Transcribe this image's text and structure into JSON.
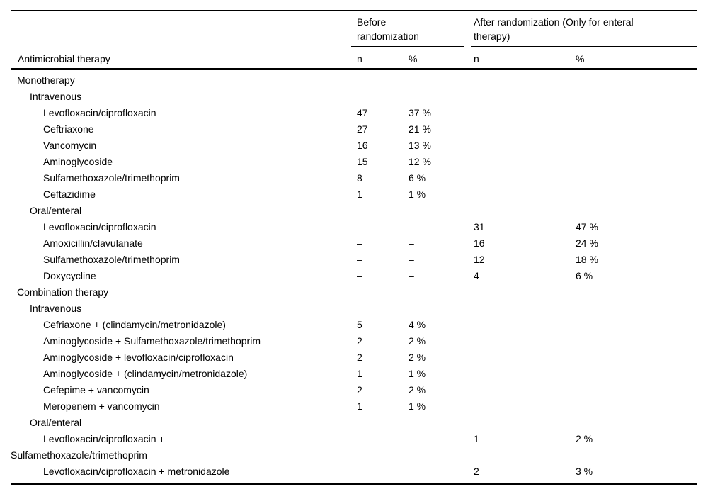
{
  "page": {
    "background": "#ffffff",
    "text_color": "#000000",
    "rule_color": "#000000"
  },
  "table": {
    "header": {
      "label_column": "Antimicrobial therapy",
      "group_before": "Before randomization",
      "group_after": "After randomization (Only for enteral therapy)",
      "subcols": {
        "n": "n",
        "pct": "%"
      }
    },
    "rows": [
      {
        "label": "Monotherapy",
        "level": 0,
        "before_n": "",
        "before_pct": "",
        "after_n": "",
        "after_pct": ""
      },
      {
        "label": "Intravenous",
        "level": 1,
        "before_n": "",
        "before_pct": "",
        "after_n": "",
        "after_pct": ""
      },
      {
        "label": "Levofloxacin/ciprofloxacin",
        "level": 2,
        "before_n": "47",
        "before_pct": "37 %",
        "after_n": "",
        "after_pct": ""
      },
      {
        "label": "Ceftriaxone",
        "level": 2,
        "before_n": "27",
        "before_pct": "21 %",
        "after_n": "",
        "after_pct": ""
      },
      {
        "label": "Vancomycin",
        "level": 2,
        "before_n": "16",
        "before_pct": "13 %",
        "after_n": "",
        "after_pct": ""
      },
      {
        "label": "Aminoglycoside",
        "level": 2,
        "before_n": "15",
        "before_pct": "12 %",
        "after_n": "",
        "after_pct": ""
      },
      {
        "label": "Sulfamethoxazole/trimethoprim",
        "level": 2,
        "before_n": "8",
        "before_pct": "6 %",
        "after_n": "",
        "after_pct": ""
      },
      {
        "label": "Ceftazidime",
        "level": 2,
        "before_n": "1",
        "before_pct": "1 %",
        "after_n": "",
        "after_pct": ""
      },
      {
        "label": "Oral/enteral",
        "level": 1,
        "before_n": "",
        "before_pct": "",
        "after_n": "",
        "after_pct": ""
      },
      {
        "label": "Levofloxacin/ciprofloxacin",
        "level": 2,
        "before_n": "–",
        "before_pct": "–",
        "after_n": "31",
        "after_pct": "47 %"
      },
      {
        "label": "Amoxicillin/clavulanate",
        "level": 2,
        "before_n": "–",
        "before_pct": "–",
        "after_n": "16",
        "after_pct": "24 %"
      },
      {
        "label": "Sulfamethoxazole/trimethoprim",
        "level": 2,
        "before_n": "–",
        "before_pct": "–",
        "after_n": "12",
        "after_pct": "18 %"
      },
      {
        "label": "Doxycycline",
        "level": 2,
        "before_n": "–",
        "before_pct": "–",
        "after_n": "4",
        "after_pct": "6 %"
      },
      {
        "label": "Combination therapy",
        "level": 0,
        "before_n": "",
        "before_pct": "",
        "after_n": "",
        "after_pct": ""
      },
      {
        "label": "Intravenous",
        "level": 1,
        "before_n": "",
        "before_pct": "",
        "after_n": "",
        "after_pct": ""
      },
      {
        "label": "Cefriaxone + (clindamycin/metronidazole)",
        "level": 2,
        "before_n": "5",
        "before_pct": "4 %",
        "after_n": "",
        "after_pct": ""
      },
      {
        "label": "Aminoglycoside + Sulfamethoxazole/trimethoprim",
        "level": 2,
        "before_n": "2",
        "before_pct": "2 %",
        "after_n": "",
        "after_pct": ""
      },
      {
        "label": "Aminoglycoside + levofloxacin/ciprofloxacin",
        "level": 2,
        "before_n": "2",
        "before_pct": "2 %",
        "after_n": "",
        "after_pct": ""
      },
      {
        "label": "Aminoglycoside + (clindamycin/metronidazole)",
        "level": 2,
        "before_n": "1",
        "before_pct": "1 %",
        "after_n": "",
        "after_pct": ""
      },
      {
        "label": "Cefepime + vancomycin",
        "level": 2,
        "before_n": "2",
        "before_pct": "2 %",
        "after_n": "",
        "after_pct": ""
      },
      {
        "label": "Meropenem + vancomycin",
        "level": 2,
        "before_n": "1",
        "before_pct": "1 %",
        "after_n": "",
        "after_pct": ""
      },
      {
        "label": "Oral/enteral",
        "level": 1,
        "before_n": "",
        "before_pct": "",
        "after_n": "",
        "after_pct": ""
      },
      {
        "label": "Levofloxacin/ciprofloxacin + Sulfamethoxazole/trimethoprim",
        "level": 2,
        "hang": true,
        "before_n": "",
        "before_pct": "",
        "after_n": "1",
        "after_pct": "2 %"
      },
      {
        "label": "Levofloxacin/ciprofloxacin + metronidazole",
        "level": 2,
        "before_n": "",
        "before_pct": "",
        "after_n": "2",
        "after_pct": "3 %"
      }
    ]
  }
}
